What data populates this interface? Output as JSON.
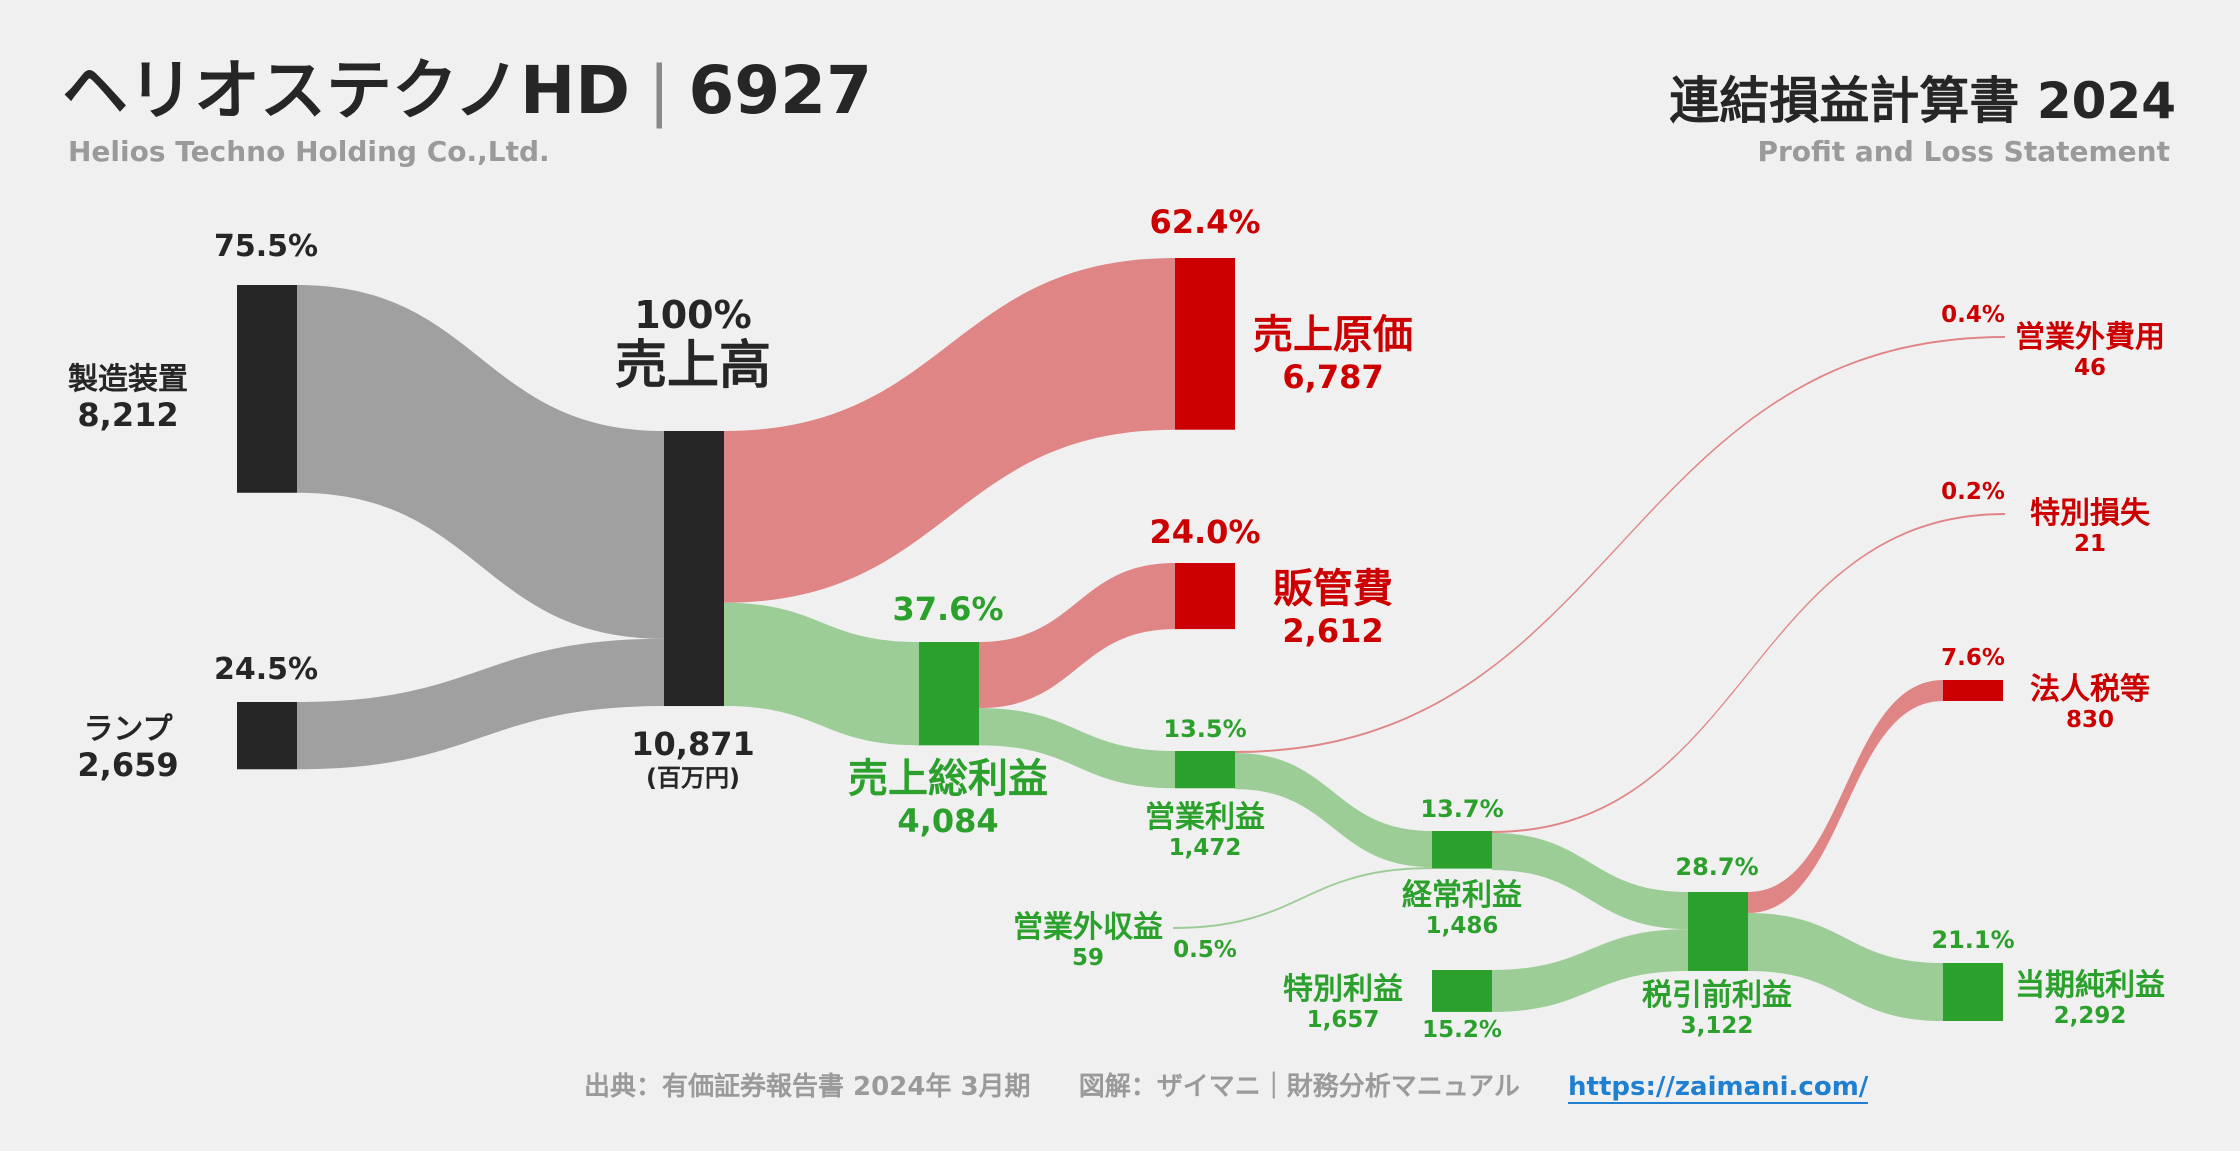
{
  "header": {
    "company": "ヘリオステクノHD",
    "code": "6927",
    "company_en": "Helios Techno Holding Co.,Ltd.",
    "statement": "連結損益計算書 2024",
    "statement_en": "Profit and Loss Statement"
  },
  "footer": {
    "source": "出典：有価証券報告書 2024年 3月期",
    "credit": "図解：ザイマニ｜財務分析マニュアル",
    "url": "https://zaimani.com/"
  },
  "colors": {
    "revenue_node": "#262626",
    "revenue_flow": "#a0a0a0",
    "cost_node": "#cc0000",
    "cost_flow": "#e08585",
    "profit_node": "#2ca02c",
    "profit_flow": "#9ccd96"
  },
  "chart_data": {
    "type": "sankey",
    "unit": "(百万円)",
    "nodes": [
      {
        "id": "mfg",
        "label": "製造装置",
        "value": 8212,
        "value_label": "8,212",
        "pct": "75.5%",
        "kind": "revenue"
      },
      {
        "id": "lamp",
        "label": "ランプ",
        "value": 2659,
        "value_label": "2,659",
        "pct": "24.5%",
        "kind": "revenue"
      },
      {
        "id": "sales",
        "label": "売上高",
        "value": 10871,
        "value_label": "10,871",
        "pct": "100%",
        "kind": "revenue"
      },
      {
        "id": "cogs",
        "label": "売上原価",
        "value": 6787,
        "value_label": "6,787",
        "pct": "62.4%",
        "kind": "cost"
      },
      {
        "id": "gross",
        "label": "売上総利益",
        "value": 4084,
        "value_label": "4,084",
        "pct": "37.6%",
        "kind": "profit"
      },
      {
        "id": "sga",
        "label": "販管費",
        "value": 2612,
        "value_label": "2,612",
        "pct": "24.0%",
        "kind": "cost"
      },
      {
        "id": "op",
        "label": "営業利益",
        "value": 1472,
        "value_label": "1,472",
        "pct": "13.5%",
        "kind": "profit"
      },
      {
        "id": "nonop_inc",
        "label": "営業外収益",
        "value": 59,
        "value_label": "59",
        "pct": "0.5%",
        "kind": "profit"
      },
      {
        "id": "nonop_exp",
        "label": "営業外費用",
        "value": 46,
        "value_label": "46",
        "pct": "0.4%",
        "kind": "cost"
      },
      {
        "id": "ord",
        "label": "経常利益",
        "value": 1486,
        "value_label": "1,486",
        "pct": "13.7%",
        "kind": "profit"
      },
      {
        "id": "ext_gain",
        "label": "特別利益",
        "value": 1657,
        "value_label": "1,657",
        "pct": "15.2%",
        "kind": "profit"
      },
      {
        "id": "ext_loss",
        "label": "特別損失",
        "value": 21,
        "value_label": "21",
        "pct": "0.2%",
        "kind": "cost"
      },
      {
        "id": "pretax",
        "label": "税引前利益",
        "value": 3122,
        "value_label": "3,122",
        "pct": "28.7%",
        "kind": "profit"
      },
      {
        "id": "tax",
        "label": "法人税等",
        "value": 830,
        "value_label": "830",
        "pct": "7.6%",
        "kind": "cost"
      },
      {
        "id": "net",
        "label": "当期純利益",
        "value": 2292,
        "value_label": "2,292",
        "pct": "21.1%",
        "kind": "profit"
      }
    ],
    "links": [
      {
        "source": "mfg",
        "target": "sales",
        "value": 8212
      },
      {
        "source": "lamp",
        "target": "sales",
        "value": 2659
      },
      {
        "source": "sales",
        "target": "cogs",
        "value": 6787
      },
      {
        "source": "sales",
        "target": "gross",
        "value": 4084
      },
      {
        "source": "gross",
        "target": "sga",
        "value": 2612
      },
      {
        "source": "gross",
        "target": "op",
        "value": 1472
      },
      {
        "source": "op",
        "target": "nonop_exp",
        "value": 46
      },
      {
        "source": "op",
        "target": "ord",
        "value": 1426
      },
      {
        "source": "nonop_inc",
        "target": "ord",
        "value": 59
      },
      {
        "source": "ord",
        "target": "ext_loss",
        "value": 21
      },
      {
        "source": "ord",
        "target": "pretax",
        "value": 1465
      },
      {
        "source": "ext_gain",
        "target": "pretax",
        "value": 1657
      },
      {
        "source": "pretax",
        "target": "tax",
        "value": 830
      },
      {
        "source": "pretax",
        "target": "net",
        "value": 2292
      }
    ]
  }
}
